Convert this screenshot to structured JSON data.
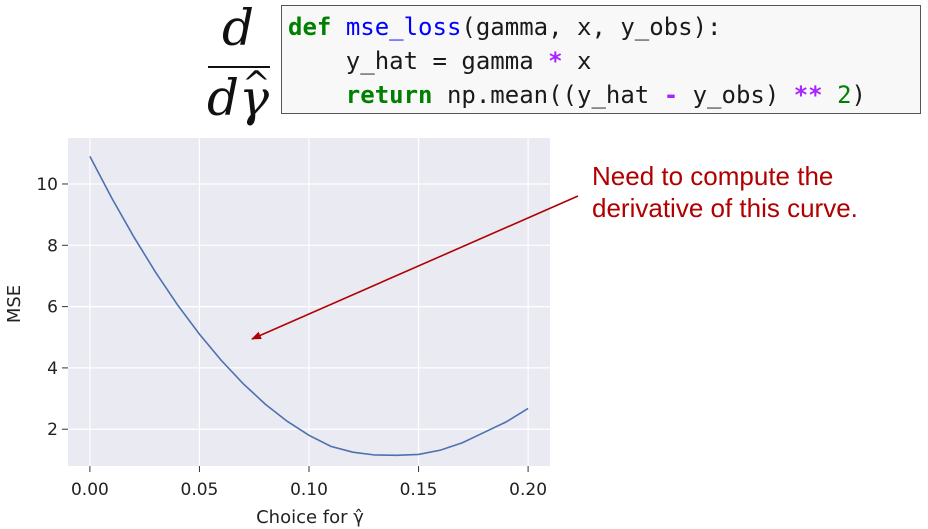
{
  "formula": {
    "numerator": "d",
    "denominator": "dγ"
  },
  "code": {
    "l1": {
      "kw": "def",
      "fn": "mse_loss",
      "args": "(gamma, x, y_obs):"
    },
    "l2": {
      "a": "y_hat = gamma ",
      "op": "*",
      "b": " x"
    },
    "l3": {
      "kw": "return",
      "a": " np.mean((y_hat ",
      "op1": "-",
      "b": " y_obs) ",
      "op2": "**",
      "c": " ",
      "num": "2",
      "d": ")"
    }
  },
  "annotation": {
    "line1": "Need to compute the",
    "line2": "derivative of this curve."
  },
  "chart_data": {
    "type": "line",
    "xlabel": "Choice for γ̂",
    "ylabel": "MSE",
    "xlim": [
      -0.01,
      0.21
    ],
    "ylim": [
      0.8,
      11.5
    ],
    "xticks": [
      0.0,
      0.05,
      0.1,
      0.15,
      0.2
    ],
    "xtick_labels": [
      "0.00",
      "0.05",
      "0.10",
      "0.15",
      "0.20"
    ],
    "yticks": [
      2,
      4,
      6,
      8,
      10
    ],
    "ytick_labels": [
      "2",
      "4",
      "6",
      "8",
      "10"
    ],
    "grid": true,
    "background": "#eaeaf2",
    "series": [
      {
        "color": "#4c72b0",
        "x": [
          0.0,
          0.01,
          0.02,
          0.03,
          0.04,
          0.05,
          0.06,
          0.07,
          0.08,
          0.09,
          0.1,
          0.11,
          0.12,
          0.13,
          0.14,
          0.15,
          0.16,
          0.17,
          0.18,
          0.19,
          0.2
        ],
        "y": [
          10.9,
          9.54,
          8.28,
          7.12,
          6.06,
          5.1,
          4.24,
          3.48,
          2.82,
          2.26,
          1.8,
          1.44,
          1.25,
          1.16,
          1.15,
          1.18,
          1.32,
          1.56,
          1.9,
          2.24,
          2.68
        ]
      }
    ]
  }
}
